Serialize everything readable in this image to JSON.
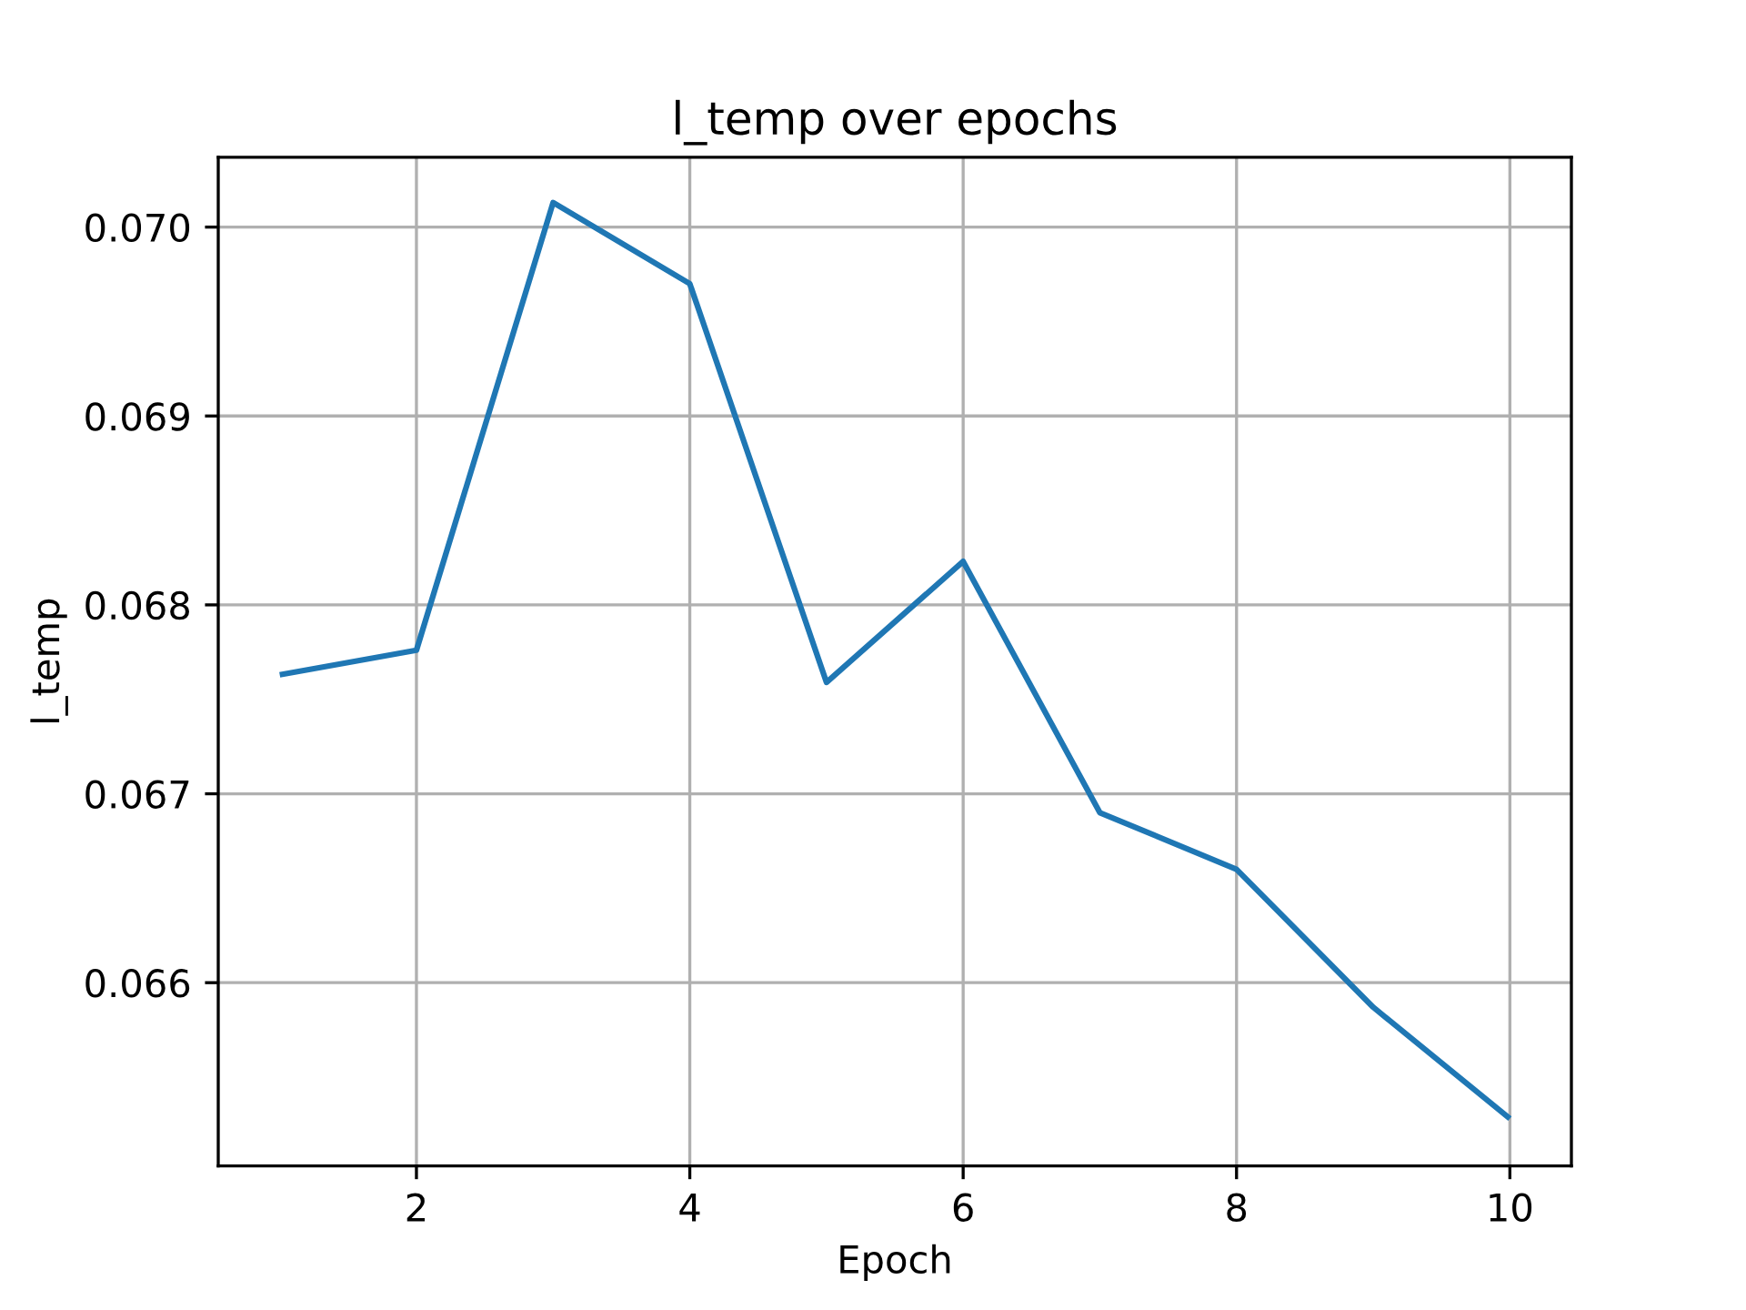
{
  "chart_data": {
    "type": "line",
    "title": "l_temp over epochs",
    "xlabel": "Epoch",
    "ylabel": "l_temp",
    "x": [
      1,
      2,
      3,
      4,
      5,
      6,
      7,
      8,
      9,
      10
    ],
    "series": [
      {
        "color": "#1f77b4",
        "values": [
          0.06763,
          0.06776,
          0.07013,
          0.0697,
          0.06759,
          0.06823,
          0.0669,
          0.0666,
          0.06587,
          0.06528
        ]
      }
    ],
    "xlim": [
      0.55,
      10.45
    ],
    "xticks": [
      2,
      4,
      6,
      8,
      10
    ],
    "ylim": [
      0.06503,
      0.07037
    ],
    "yticks": [
      0.066,
      0.067,
      0.068,
      0.069,
      {
        "value": 0.07,
        "label": "0.070"
      }
    ],
    "grid": true,
    "marker": "none",
    "line_style": "solid"
  }
}
